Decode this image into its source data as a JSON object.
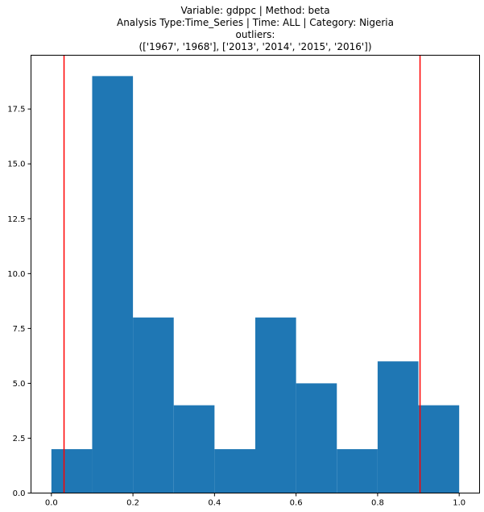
{
  "chart_data": {
    "type": "bar",
    "title_lines": [
      "Variable: gdppc | Method: beta",
      "Analysis Type:Time_Series | Time: ALL | Category: Nigeria",
      "outliers:",
      "(['1967', '1968'], ['2013', '2014', '2015', '2016'])"
    ],
    "xlabel": "",
    "ylabel": "",
    "bin_edges": [
      0.0,
      0.1,
      0.2,
      0.3,
      0.4,
      0.5,
      0.6,
      0.7,
      0.8,
      0.9,
      1.0
    ],
    "values": [
      2,
      19,
      8,
      4,
      2,
      8,
      5,
      2,
      6,
      4
    ],
    "xlim": [
      -0.05,
      1.05
    ],
    "ylim": [
      0,
      19.95
    ],
    "x_ticks": [
      0.0,
      0.2,
      0.4,
      0.6,
      0.8,
      1.0
    ],
    "x_tick_labels": [
      "0.0",
      "0.2",
      "0.4",
      "0.6",
      "0.8",
      "1.0"
    ],
    "y_ticks": [
      0.0,
      2.5,
      5.0,
      7.5,
      10.0,
      12.5,
      15.0,
      17.5
    ],
    "y_tick_labels": [
      "0.0",
      "2.5",
      "5.0",
      "7.5",
      "10.0",
      "12.5",
      "15.0",
      "17.5"
    ],
    "vlines": [
      0.031,
      0.904
    ],
    "bar_color": "#1f77b4",
    "vline_color": "#ff0000",
    "grid": false,
    "legend": "none"
  }
}
